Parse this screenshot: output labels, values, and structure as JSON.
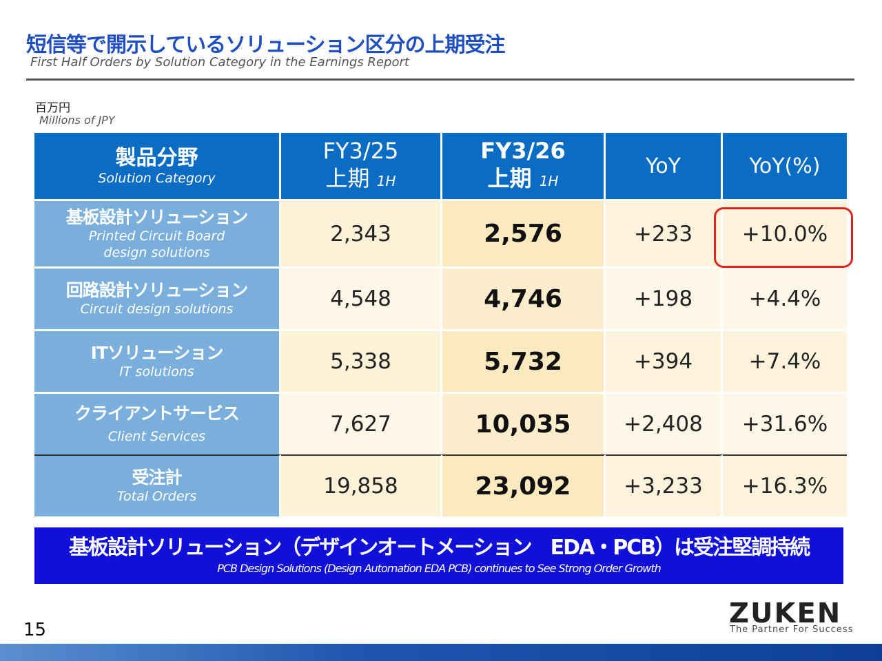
{
  "header": {
    "title": "短信等で開示しているソリューション区分の上期受注",
    "subtitle": "First Half Orders by Solution Category in the Earnings Report"
  },
  "unit": {
    "ja": "百万円",
    "en": "Millions of JPY"
  },
  "table": {
    "columns": {
      "category": {
        "ja": "製品分野",
        "en": "Solution Category"
      },
      "prev": {
        "fy": "FY3/25",
        "period": "上期",
        "half": "1H"
      },
      "curr": {
        "fy": "FY3/26",
        "period": "上期",
        "half": "1H"
      },
      "yoy": "YoY",
      "yoy_pct": "YoY(%)"
    },
    "rows": [
      {
        "ja": "基板設計ソリューション",
        "en1": "Printed Circuit Board",
        "en2": "design solutions",
        "prev": "2,343",
        "curr": "2,576",
        "yoy": "+233",
        "pct": "+10.0%"
      },
      {
        "ja": "回路設計ソリューション",
        "en1": "Circuit design solutions",
        "prev": "4,548",
        "curr": "4,746",
        "yoy": "+198",
        "pct": "+4.4%"
      },
      {
        "ja": "ITソリューション",
        "en1": "IT solutions",
        "prev": "5,338",
        "curr": "5,732",
        "yoy": "+394",
        "pct": "+7.4%"
      },
      {
        "ja": "クライアントサービス",
        "en1": "Client Services",
        "prev": "7,627",
        "curr": "10,035",
        "yoy": "+2,408",
        "pct": "+31.6%"
      },
      {
        "ja": "受注計",
        "en1": "Total Orders",
        "prev": "19,858",
        "curr": "23,092",
        "yoy": "+3,233",
        "pct": "+16.3%"
      }
    ]
  },
  "banner": {
    "ja": "基板設計ソリューション（デザインオートメーション　EDA・PCB）は受注堅調持続",
    "en": "PCB Design Solutions (Design Automation EDA PCB) continues to See Strong Order Growth"
  },
  "footer": {
    "page_number": "15",
    "logo": "ZUKEN",
    "tagline": "The Partner For Success"
  },
  "colors": {
    "title": "#1f4fbf",
    "header_bg": "#0a6cc2",
    "category_bg": "#7aaedb",
    "banner_bg": "#1010d8",
    "highlight": "#e0241c"
  }
}
